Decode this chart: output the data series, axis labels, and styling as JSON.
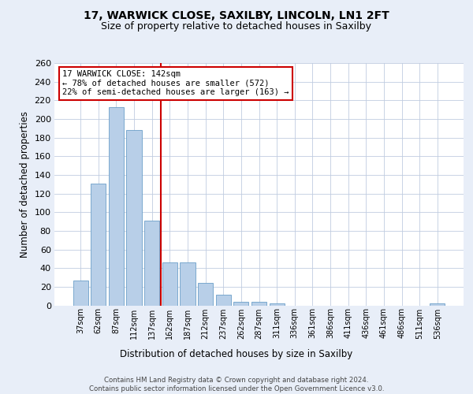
{
  "title1": "17, WARWICK CLOSE, SAXILBY, LINCOLN, LN1 2FT",
  "title2": "Size of property relative to detached houses in Saxilby",
  "xlabel": "Distribution of detached houses by size in Saxilby",
  "ylabel": "Number of detached properties",
  "categories": [
    "37sqm",
    "62sqm",
    "87sqm",
    "112sqm",
    "137sqm",
    "162sqm",
    "187sqm",
    "212sqm",
    "237sqm",
    "262sqm",
    "287sqm",
    "311sqm",
    "336sqm",
    "361sqm",
    "386sqm",
    "411sqm",
    "436sqm",
    "461sqm",
    "486sqm",
    "511sqm",
    "536sqm"
  ],
  "values": [
    27,
    131,
    213,
    188,
    91,
    46,
    46,
    24,
    11,
    4,
    4,
    2,
    0,
    0,
    0,
    0,
    0,
    0,
    0,
    0,
    2
  ],
  "bar_color": "#b8cfe8",
  "bar_edgecolor": "#6b9fc8",
  "vline_color": "#cc0000",
  "vline_index": 4,
  "ylim_max": 260,
  "ytick_step": 20,
  "annotation_line1": "17 WARWICK CLOSE: 142sqm",
  "annotation_line2": "← 78% of detached houses are smaller (572)",
  "annotation_line3": "22% of semi-detached houses are larger (163) →",
  "annotation_box_edgecolor": "#cc0000",
  "annotation_box_facecolor": "#ffffff",
  "footer1": "Contains HM Land Registry data © Crown copyright and database right 2024.",
  "footer2": "Contains public sector information licensed under the Open Government Licence v3.0.",
  "bg_color": "#e8eef8",
  "plot_bg_color": "#ffffff",
  "grid_color": "#c0cce0"
}
